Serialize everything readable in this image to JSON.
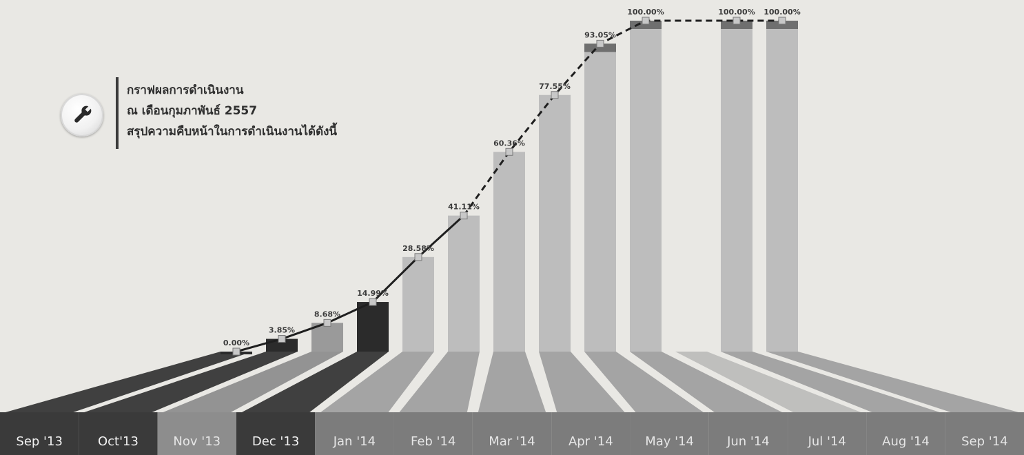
{
  "note": {
    "lines": [
      "กราฟผลการดำเนินงาน",
      "ณ เดือนกุมภาพันธ์ 2557",
      "สรุปความคืบหน้าในการดำเนินงานได้ดังนี้"
    ],
    "icon": "wrench-icon"
  },
  "chart_data": {
    "type": "bar",
    "categories": [
      "Sep '13",
      "Oct'13",
      "Nov '13",
      "Dec '13",
      "Jan '14",
      "Feb '14",
      "Mar '14",
      "Apr '14",
      "May '14",
      "Jun '14",
      "Jul '14",
      "Aug '14",
      "Sep '14"
    ],
    "bars": [
      {
        "month": "Sep '13",
        "value": 0.0,
        "label": "0.00%",
        "status": "actual",
        "color": "#2b2b2b"
      },
      {
        "month": "Oct'13",
        "value": 3.85,
        "label": "3.85%",
        "status": "actual",
        "color": "#2b2b2b"
      },
      {
        "month": "Nov '13",
        "value": 8.68,
        "label": "8.68%",
        "status": "actual",
        "color": "#9a9a9a"
      },
      {
        "month": "Dec '13",
        "value": 14.99,
        "label": "14.99%",
        "status": "actual",
        "color": "#2b2b2b"
      },
      {
        "month": "Jan '14",
        "value": 28.58,
        "label": "28.58%",
        "status": "plan",
        "color": "#bdbdbd"
      },
      {
        "month": "Feb '14",
        "value": 41.11,
        "label": "41.11%",
        "status": "plan",
        "color": "#bdbdbd"
      },
      {
        "month": "Mar '14",
        "value": 60.36,
        "label": "60.36%",
        "status": "plan",
        "color": "#bdbdbd"
      },
      {
        "month": "Apr '14",
        "value": 77.55,
        "label": "77.55%",
        "status": "plan",
        "color": "#bdbdbd"
      },
      {
        "month": "May '14",
        "value": 93.05,
        "label": "93.05%",
        "status": "plan",
        "color": "#bdbdbd"
      },
      {
        "month": "Jun '14",
        "value": 100.0,
        "label": "100.00%",
        "status": "plan",
        "color": "#bdbdbd"
      },
      {
        "month": "Jul '14",
        "value": null,
        "label": "",
        "status": "none",
        "color": "#bdbdbd"
      },
      {
        "month": "Aug '14",
        "value": 100.0,
        "label": "100.00%",
        "status": "plan",
        "color": "#bdbdbd"
      },
      {
        "month": "Sep '14",
        "value": 100.0,
        "label": "100.00%",
        "status": "plan",
        "color": "#bdbdbd"
      }
    ],
    "line": {
      "solid_until": "Feb '14",
      "dashed_from": "Feb '14",
      "color": "#1f1f1f"
    },
    "ylim": [
      0,
      100
    ],
    "title": "",
    "xlabel": "",
    "ylabel": "",
    "grid": false,
    "colors": {
      "background": "#e9e8e4",
      "dark": "#2b2b2b",
      "mid": "#9a9a9a",
      "light": "#bdbdbd",
      "label_band": "#7c7c7c",
      "label_band_dark": "#3a3a3a",
      "cap": "#6f6f6f"
    }
  }
}
